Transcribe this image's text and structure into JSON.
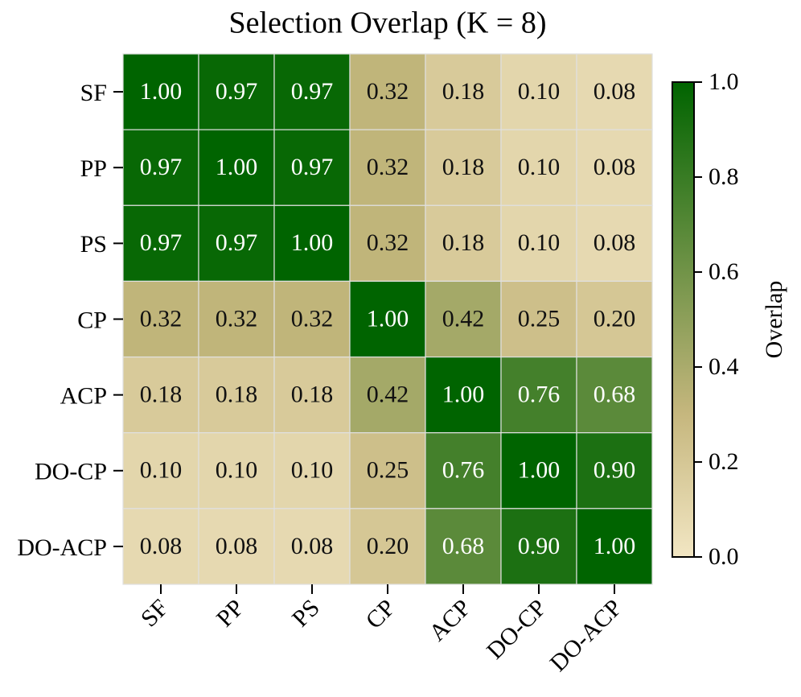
{
  "chart_data": {
    "type": "heatmap",
    "title": "Selection Overlap (K = 8)",
    "x_categories": [
      "SF",
      "PP",
      "PS",
      "CP",
      "ACP",
      "DO-CP",
      "DO-ACP"
    ],
    "y_categories": [
      "SF",
      "PP",
      "PS",
      "CP",
      "ACP",
      "DO-CP",
      "DO-ACP"
    ],
    "values": [
      [
        1.0,
        0.97,
        0.97,
        0.32,
        0.18,
        0.1,
        0.08
      ],
      [
        0.97,
        1.0,
        0.97,
        0.32,
        0.18,
        0.1,
        0.08
      ],
      [
        0.97,
        0.97,
        1.0,
        0.32,
        0.18,
        0.1,
        0.08
      ],
      [
        0.32,
        0.32,
        0.32,
        1.0,
        0.42,
        0.25,
        0.2
      ],
      [
        0.18,
        0.18,
        0.18,
        0.42,
        1.0,
        0.76,
        0.68
      ],
      [
        0.1,
        0.1,
        0.1,
        0.25,
        0.76,
        1.0,
        0.9
      ],
      [
        0.08,
        0.08,
        0.08,
        0.2,
        0.68,
        0.9,
        1.0
      ]
    ],
    "value_labels": [
      [
        "1.00",
        "0.97",
        "0.97",
        "0.32",
        "0.18",
        "0.10",
        "0.08"
      ],
      [
        "0.97",
        "1.00",
        "0.97",
        "0.32",
        "0.18",
        "0.10",
        "0.08"
      ],
      [
        "0.97",
        "0.97",
        "1.00",
        "0.32",
        "0.18",
        "0.10",
        "0.08"
      ],
      [
        "0.32",
        "0.32",
        "0.32",
        "1.00",
        "0.42",
        "0.25",
        "0.20"
      ],
      [
        "0.18",
        "0.18",
        "0.18",
        "0.42",
        "1.00",
        "0.76",
        "0.68"
      ],
      [
        "0.10",
        "0.10",
        "0.10",
        "0.25",
        "0.76",
        "1.00",
        "0.90"
      ],
      [
        "0.08",
        "0.08",
        "0.08",
        "0.20",
        "0.68",
        "0.90",
        "1.00"
      ]
    ],
    "colorbar_label": "Overlap",
    "clim": [
      0,
      1
    ],
    "cticks": [
      {
        "value": 0,
        "label": "0.0"
      },
      {
        "value": 0.2,
        "label": "0.2"
      },
      {
        "value": 0.4,
        "label": "0.4"
      },
      {
        "value": 0.6,
        "label": "0.6"
      },
      {
        "value": 0.8,
        "label": "0.8"
      },
      {
        "value": 1,
        "label": "1.0"
      }
    ],
    "colormap": [
      {
        "value": 0,
        "color": "#f2e6c3"
      },
      {
        "value": 0.3,
        "color": "#c6b77e"
      },
      {
        "value": 1,
        "color": "#006400"
      }
    ]
  }
}
